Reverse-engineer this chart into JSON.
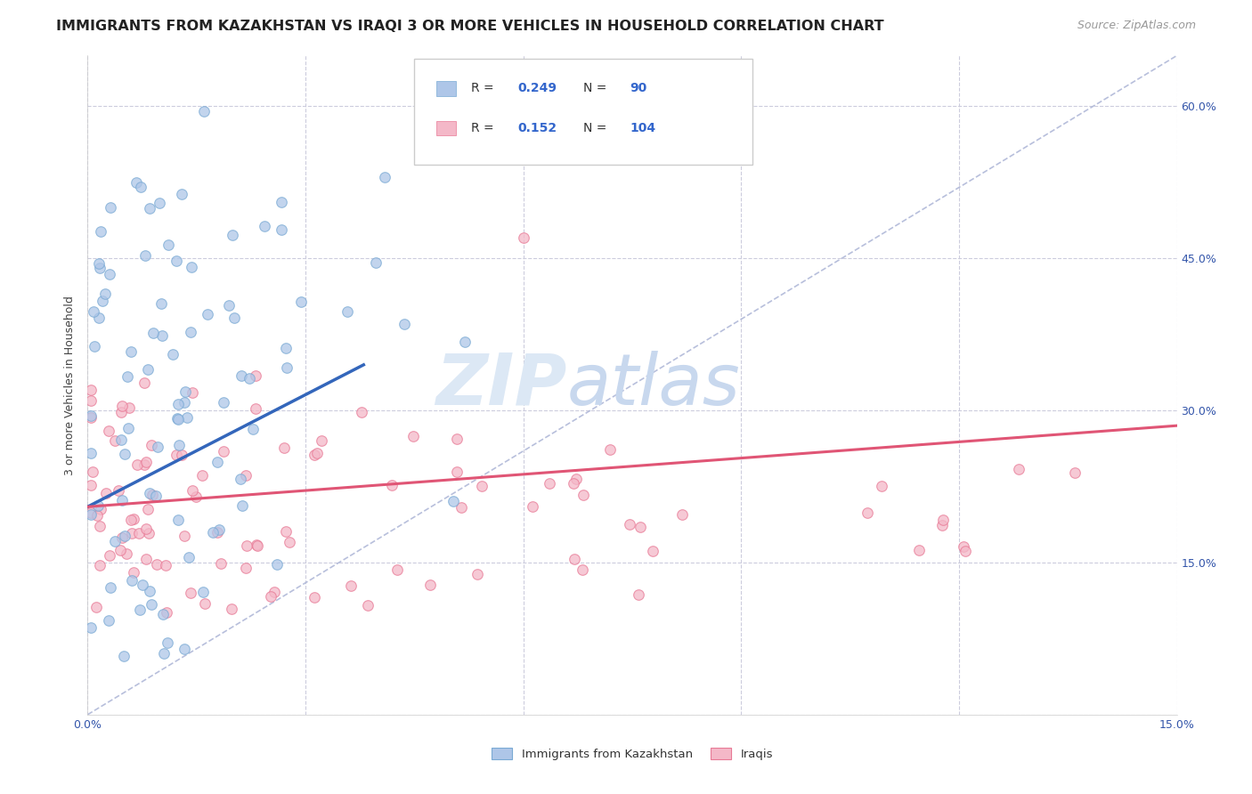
{
  "title": "IMMIGRANTS FROM KAZAKHSTAN VS IRAQI 3 OR MORE VEHICLES IN HOUSEHOLD CORRELATION CHART",
  "source": "Source: ZipAtlas.com",
  "ylabel": "3 or more Vehicles in Household",
  "xlim": [
    0.0,
    0.15
  ],
  "ylim": [
    0.0,
    0.65
  ],
  "xtick_positions": [
    0.0,
    0.03,
    0.06,
    0.09,
    0.12,
    0.15
  ],
  "xtick_labels": [
    "0.0%",
    "",
    "",
    "",
    "",
    "15.0%"
  ],
  "ytick_positions": [
    0.0,
    0.15,
    0.3,
    0.45,
    0.6
  ],
  "ytick_labels_right": [
    "",
    "15.0%",
    "30.0%",
    "45.0%",
    "60.0%"
  ],
  "r_kazakhstan": "0.249",
  "n_kazakhstan": "90",
  "r_iraqi": "0.152",
  "n_iraqi": "104",
  "color_kazakhstan": "#aec6e8",
  "color_iraqi": "#f4b8c8",
  "edge_color_kazakhstan": "#7aaad4",
  "edge_color_iraqi": "#e87a96",
  "trendline_color_kazakhstan": "#3366bb",
  "trendline_color_iraqi": "#e05575",
  "dashed_line_color": "#b0b8d8",
  "watermark_zip": "ZIP",
  "watermark_atlas": "atlas",
  "watermark_color": "#dce8f5",
  "legend_label_kazakhstan": "Immigrants from Kazakhstan",
  "legend_label_iraqi": "Iraqis",
  "background_color": "#ffffff",
  "grid_color": "#ccccdd",
  "title_fontsize": 11.5,
  "axis_label_fontsize": 9,
  "tick_fontsize": 9,
  "source_fontsize": 9,
  "kaz_trend_x0": 0.0,
  "kaz_trend_y0": 0.205,
  "kaz_trend_x1": 0.038,
  "kaz_trend_y1": 0.345,
  "iraqi_trend_x0": 0.0,
  "iraqi_trend_y0": 0.205,
  "iraqi_trend_x1": 0.15,
  "iraqi_trend_y1": 0.285
}
